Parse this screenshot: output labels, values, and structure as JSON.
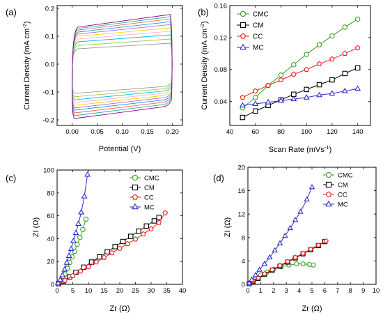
{
  "chart_data": [
    {
      "type": "line",
      "panel_label": "(a)",
      "xlabel": "Potential (V)",
      "ylabel": "Current Density (mA cm",
      "ylabel_sup": "-2",
      "ylabel_end": ")",
      "xlim": [
        -0.03,
        0.22
      ],
      "ylim": [
        -0.22,
        0.21
      ],
      "xticks": [
        "0.00",
        "0.05",
        "0.10",
        "0.15",
        "0.20"
      ],
      "xtick_values": [
        0,
        0.05,
        0.1,
        0.15,
        0.2
      ],
      "yticks": [
        "-0.2",
        "-0.1",
        "0.0",
        "0.1",
        "0.2"
      ],
      "ytick_values": [
        -0.2,
        -0.1,
        0,
        0.1,
        0.2
      ],
      "series_description": "cyclic voltammetry loops at increasing scan rates",
      "series": [
        {
          "color": "#9a9a9a",
          "upper": [
            0.055,
            0.075
          ],
          "lower": [
            -0.105,
            -0.08
          ]
        },
        {
          "color": "#9acd32",
          "upper": [
            0.067,
            0.09
          ],
          "lower": [
            -0.117,
            -0.088
          ]
        },
        {
          "color": "#00bfff",
          "upper": [
            0.08,
            0.105
          ],
          "lower": [
            -0.128,
            -0.096
          ]
        },
        {
          "color": "#ffb6c1",
          "upper": [
            0.09,
            0.118
          ],
          "lower": [
            -0.138,
            -0.104
          ]
        },
        {
          "color": "#ffd700",
          "upper": [
            0.1,
            0.13
          ],
          "lower": [
            -0.148,
            -0.112
          ]
        },
        {
          "color": "#9370db",
          "upper": [
            0.108,
            0.142
          ],
          "lower": [
            -0.157,
            -0.12
          ]
        },
        {
          "color": "#1e90ff",
          "upper": [
            0.115,
            0.152
          ],
          "lower": [
            -0.165,
            -0.128
          ]
        },
        {
          "color": "#ff6347",
          "upper": [
            0.122,
            0.162
          ],
          "lower": [
            -0.175,
            -0.136
          ]
        },
        {
          "color": "#20b2aa",
          "upper": [
            0.128,
            0.17
          ],
          "lower": [
            -0.185,
            -0.144
          ]
        },
        {
          "color": "#8b008b",
          "upper": [
            0.133,
            0.178
          ],
          "lower": [
            -0.195,
            -0.152
          ]
        }
      ]
    },
    {
      "type": "line",
      "panel_label": "(b)",
      "xlabel": "Scan Rate (mVs",
      "xlabel_sup": "-1",
      "xlabel_end": ")",
      "ylabel": "Current Density (mA cm",
      "ylabel_sup": "-2",
      "ylabel_end": ")",
      "xlim": [
        40,
        150
      ],
      "ylim": [
        0.01,
        0.16
      ],
      "xticks": [
        "40",
        "60",
        "80",
        "100",
        "120",
        "140"
      ],
      "xtick_values": [
        40,
        60,
        80,
        100,
        120,
        140
      ],
      "yticks": [
        "0.04",
        "0.08",
        "0.12",
        "0.16"
      ],
      "ytick_values": [
        0.04,
        0.08,
        0.12,
        0.16
      ],
      "legend_position": "top-left",
      "x": [
        50,
        60,
        70,
        80,
        90,
        100,
        110,
        120,
        130,
        140
      ],
      "series": [
        {
          "name": "CMC",
          "color": "#3a9d23",
          "marker": "circle",
          "values": [
            0.032,
            0.045,
            0.06,
            0.073,
            0.086,
            0.099,
            0.111,
            0.122,
            0.133,
            0.143
          ]
        },
        {
          "name": "CM",
          "color": "#000000",
          "marker": "square",
          "values": [
            0.02,
            0.028,
            0.035,
            0.042,
            0.049,
            0.055,
            0.061,
            0.067,
            0.075,
            0.082
          ]
        },
        {
          "name": "CC",
          "color": "#e8231e",
          "marker": "pentagon",
          "values": [
            0.045,
            0.053,
            0.06,
            0.067,
            0.074,
            0.08,
            0.087,
            0.093,
            0.1,
            0.107
          ]
        },
        {
          "name": "MC",
          "color": "#2b2bd4",
          "marker": "triangle",
          "values": [
            0.035,
            0.037,
            0.039,
            0.041,
            0.043,
            0.045,
            0.048,
            0.05,
            0.053,
            0.056
          ]
        }
      ]
    },
    {
      "type": "scatter",
      "panel_label": "(c)",
      "xlabel": "Zr (Ω)",
      "ylabel": "ZI (Ω)",
      "xlim": [
        0,
        40
      ],
      "ylim": [
        0,
        100
      ],
      "xticks": [
        "0",
        "5",
        "10",
        "15",
        "20",
        "25",
        "30",
        "35",
        "40"
      ],
      "xtick_values": [
        0,
        5,
        10,
        15,
        20,
        25,
        30,
        35,
        40
      ],
      "yticks": [
        "0",
        "20",
        "40",
        "60",
        "80",
        "100"
      ],
      "ytick_values": [
        0,
        20,
        40,
        60,
        80,
        100
      ],
      "legend_position": "top-right",
      "series": [
        {
          "name": "CMC",
          "color": "#3a9d23",
          "marker": "circle",
          "x": [
            0.3,
            1.0,
            1.8,
            2.5,
            3.3,
            4.0,
            4.8,
            5.6,
            6.4,
            7.3,
            8.2,
            9.2
          ],
          "y": [
            0.5,
            2.0,
            5.0,
            9.0,
            14.0,
            19.0,
            24.0,
            29.0,
            35.0,
            41.0,
            48.0,
            57.0
          ]
        },
        {
          "name": "CM",
          "color": "#000000",
          "marker": "square",
          "x": [
            0.5,
            2.0,
            4.0,
            6.0,
            8.5,
            11.0,
            13.5,
            16.0,
            18.5,
            21.0,
            23.5,
            26.0,
            28.5,
            31.0,
            32.5
          ],
          "y": [
            0.5,
            3.0,
            6.5,
            10.5,
            15.0,
            19.5,
            24.0,
            28.5,
            33.0,
            37.5,
            42.0,
            46.5,
            51.0,
            55.5,
            58.5
          ]
        },
        {
          "name": "CC",
          "color": "#e8231e",
          "marker": "pentagon",
          "x": [
            0.5,
            2.5,
            5.0,
            7.5,
            10.0,
            12.5,
            15.0,
            17.5,
            20.0,
            22.5,
            25.0,
            27.5,
            30.0,
            32.5,
            34.5
          ],
          "y": [
            0.5,
            3.5,
            7.5,
            11.5,
            15.5,
            19.5,
            23.5,
            27.5,
            31.5,
            35.5,
            39.5,
            44.0,
            48.5,
            54.0,
            62.5
          ]
        },
        {
          "name": "MC",
          "color": "#2b2bd4",
          "marker": "triangle",
          "x": [
            0.3,
            1.0,
            1.7,
            2.4,
            3.1,
            3.8,
            4.5,
            5.2,
            6.0,
            6.8,
            7.7,
            8.7,
            9.7
          ],
          "y": [
            1.0,
            4.0,
            8.0,
            13.0,
            19.0,
            25.0,
            31.0,
            38.0,
            45.0,
            53.0,
            63.0,
            77.0,
            96.0
          ]
        }
      ]
    },
    {
      "type": "scatter",
      "panel_label": "(d)",
      "xlabel": "Zr (Ω)",
      "ylabel": "ZI (Ω)",
      "xlim": [
        0,
        10
      ],
      "ylim": [
        0,
        20
      ],
      "xticks": [
        "0",
        "1",
        "2",
        "3",
        "4",
        "5",
        "6",
        "7",
        "8",
        "9",
        "10"
      ],
      "xtick_values": [
        0,
        1,
        2,
        3,
        4,
        5,
        6,
        7,
        8,
        9,
        10
      ],
      "yticks": [
        "0",
        "4",
        "8",
        "12",
        "16",
        "20"
      ],
      "ytick_values": [
        0,
        4,
        8,
        12,
        16,
        20
      ],
      "legend_position": "top-right",
      "series": [
        {
          "name": "CMC",
          "color": "#3a9d23",
          "marker": "circle",
          "x": [
            0.1,
            0.3,
            0.6,
            1.0,
            1.5,
            2.0,
            2.6,
            3.2,
            3.8,
            4.3,
            4.8,
            5.1
          ],
          "y": [
            0.1,
            0.5,
            1.0,
            1.6,
            2.1,
            2.6,
            3.0,
            3.3,
            3.5,
            3.5,
            3.4,
            3.3
          ]
        },
        {
          "name": "CM",
          "color": "#000000",
          "marker": "square",
          "x": [
            0.1,
            0.4,
            0.8,
            1.3,
            1.9,
            2.5,
            3.1,
            3.7,
            4.3,
            4.9,
            5.5,
            6.0
          ],
          "y": [
            0.1,
            0.5,
            1.0,
            1.7,
            2.4,
            3.1,
            3.8,
            4.5,
            5.2,
            5.9,
            6.6,
            7.3
          ]
        },
        {
          "name": "CC",
          "color": "#e8231e",
          "marker": "pentagon",
          "x": [
            0.1,
            0.4,
            0.8,
            1.3,
            1.9,
            2.5,
            3.1,
            3.7,
            4.3,
            4.9,
            5.5,
            6.1
          ],
          "y": [
            0.1,
            0.6,
            1.1,
            1.8,
            2.5,
            3.2,
            3.9,
            4.6,
            5.3,
            6.0,
            6.7,
            7.4
          ]
        },
        {
          "name": "MC",
          "color": "#2b2bd4",
          "marker": "triangle",
          "x": [
            0.1,
            0.3,
            0.6,
            0.9,
            1.3,
            1.7,
            2.1,
            2.5,
            2.9,
            3.3,
            3.7,
            4.1,
            4.6,
            5.0
          ],
          "y": [
            0.2,
            0.8,
            1.6,
            2.5,
            3.5,
            4.6,
            5.8,
            7.0,
            8.3,
            9.6,
            11.0,
            12.4,
            14.5,
            16.6
          ]
        }
      ]
    }
  ]
}
